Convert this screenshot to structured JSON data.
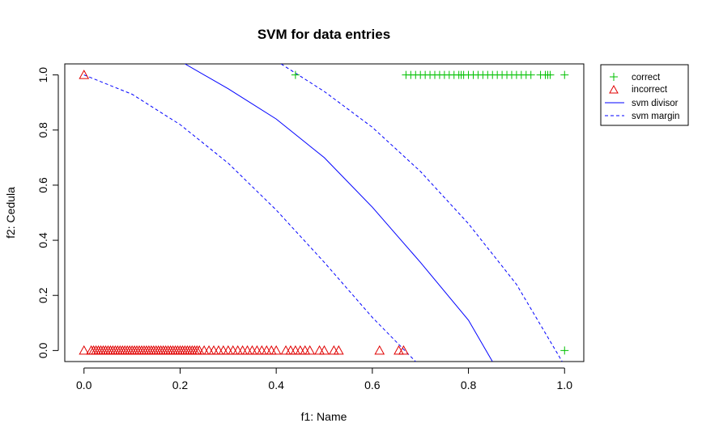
{
  "chart_data": {
    "type": "scatter",
    "title": "SVM for data entries",
    "xlabel": "f1: Name",
    "ylabel": "f2: Cedula",
    "xlim": [
      -0.04,
      1.04
    ],
    "ylim": [
      -0.04,
      1.04
    ],
    "xticks": [
      0.0,
      0.2,
      0.4,
      0.6,
      0.8,
      1.0
    ],
    "yticks": [
      0.0,
      0.2,
      0.4,
      0.6,
      0.8,
      1.0
    ],
    "xtick_labels": [
      "0.0",
      "0.2",
      "0.4",
      "0.6",
      "0.8",
      "1.0"
    ],
    "ytick_labels": [
      "0.0",
      "0.2",
      "0.4",
      "0.6",
      "0.8",
      "1.0"
    ],
    "grid": false,
    "legend_position": "outside-top-right",
    "series": [
      {
        "name": "correct",
        "marker": "plus",
        "color": "#00c000",
        "points": [
          [
            0.44,
            1.0
          ],
          [
            0.67,
            1.0
          ],
          [
            0.68,
            1.0
          ],
          [
            0.69,
            1.0
          ],
          [
            0.7,
            1.0
          ],
          [
            0.71,
            1.0
          ],
          [
            0.72,
            1.0
          ],
          [
            0.73,
            1.0
          ],
          [
            0.74,
            1.0
          ],
          [
            0.75,
            1.0
          ],
          [
            0.76,
            1.0
          ],
          [
            0.77,
            1.0
          ],
          [
            0.78,
            1.0
          ],
          [
            0.785,
            1.0
          ],
          [
            0.79,
            1.0
          ],
          [
            0.8,
            1.0
          ],
          [
            0.81,
            1.0
          ],
          [
            0.82,
            1.0
          ],
          [
            0.83,
            1.0
          ],
          [
            0.84,
            1.0
          ],
          [
            0.85,
            1.0
          ],
          [
            0.86,
            1.0
          ],
          [
            0.87,
            1.0
          ],
          [
            0.88,
            1.0
          ],
          [
            0.89,
            1.0
          ],
          [
            0.9,
            1.0
          ],
          [
            0.91,
            1.0
          ],
          [
            0.92,
            1.0
          ],
          [
            0.93,
            1.0
          ],
          [
            0.95,
            1.0
          ],
          [
            0.96,
            1.0
          ],
          [
            0.965,
            1.0
          ],
          [
            0.97,
            1.0
          ],
          [
            1.0,
            1.0
          ],
          [
            1.0,
            0.0
          ]
        ]
      },
      {
        "name": "incorrect",
        "marker": "triangle",
        "color": "#e00000",
        "points": [
          [
            0.0,
            1.0
          ],
          [
            0.0,
            0.0
          ],
          [
            0.015,
            0.0
          ],
          [
            0.02,
            0.0
          ],
          [
            0.025,
            0.0
          ],
          [
            0.03,
            0.0
          ],
          [
            0.035,
            0.0
          ],
          [
            0.04,
            0.0
          ],
          [
            0.045,
            0.0
          ],
          [
            0.05,
            0.0
          ],
          [
            0.055,
            0.0
          ],
          [
            0.06,
            0.0
          ],
          [
            0.065,
            0.0
          ],
          [
            0.07,
            0.0
          ],
          [
            0.075,
            0.0
          ],
          [
            0.08,
            0.0
          ],
          [
            0.085,
            0.0
          ],
          [
            0.09,
            0.0
          ],
          [
            0.095,
            0.0
          ],
          [
            0.1,
            0.0
          ],
          [
            0.105,
            0.0
          ],
          [
            0.11,
            0.0
          ],
          [
            0.115,
            0.0
          ],
          [
            0.12,
            0.0
          ],
          [
            0.125,
            0.0
          ],
          [
            0.13,
            0.0
          ],
          [
            0.135,
            0.0
          ],
          [
            0.14,
            0.0
          ],
          [
            0.145,
            0.0
          ],
          [
            0.15,
            0.0
          ],
          [
            0.155,
            0.0
          ],
          [
            0.16,
            0.0
          ],
          [
            0.165,
            0.0
          ],
          [
            0.17,
            0.0
          ],
          [
            0.175,
            0.0
          ],
          [
            0.18,
            0.0
          ],
          [
            0.185,
            0.0
          ],
          [
            0.19,
            0.0
          ],
          [
            0.195,
            0.0
          ],
          [
            0.2,
            0.0
          ],
          [
            0.205,
            0.0
          ],
          [
            0.21,
            0.0
          ],
          [
            0.215,
            0.0
          ],
          [
            0.22,
            0.0
          ],
          [
            0.225,
            0.0
          ],
          [
            0.23,
            0.0
          ],
          [
            0.235,
            0.0
          ],
          [
            0.24,
            0.0
          ],
          [
            0.25,
            0.0
          ],
          [
            0.26,
            0.0
          ],
          [
            0.27,
            0.0
          ],
          [
            0.28,
            0.0
          ],
          [
            0.29,
            0.0
          ],
          [
            0.3,
            0.0
          ],
          [
            0.31,
            0.0
          ],
          [
            0.32,
            0.0
          ],
          [
            0.33,
            0.0
          ],
          [
            0.34,
            0.0
          ],
          [
            0.35,
            0.0
          ],
          [
            0.36,
            0.0
          ],
          [
            0.37,
            0.0
          ],
          [
            0.38,
            0.0
          ],
          [
            0.39,
            0.0
          ],
          [
            0.4,
            0.0
          ],
          [
            0.42,
            0.0
          ],
          [
            0.43,
            0.0
          ],
          [
            0.44,
            0.0
          ],
          [
            0.45,
            0.0
          ],
          [
            0.46,
            0.0
          ],
          [
            0.47,
            0.0
          ],
          [
            0.49,
            0.0
          ],
          [
            0.5,
            0.0
          ],
          [
            0.52,
            0.0
          ],
          [
            0.53,
            0.0
          ],
          [
            0.615,
            0.0
          ],
          [
            0.655,
            0.0
          ],
          [
            0.665,
            0.0
          ]
        ]
      },
      {
        "name": "svm divisor",
        "line": "solid",
        "color": "#0000ff",
        "points": [
          [
            0.21,
            1.04
          ],
          [
            0.3,
            0.95
          ],
          [
            0.4,
            0.84
          ],
          [
            0.5,
            0.7
          ],
          [
            0.6,
            0.52
          ],
          [
            0.7,
            0.32
          ],
          [
            0.8,
            0.11
          ],
          [
            0.85,
            -0.04
          ]
        ]
      },
      {
        "name": "svm margin",
        "line": "dashed",
        "color": "#0000ff",
        "segments": [
          [
            [
              0.0,
              1.0
            ],
            [
              0.1,
              0.93
            ],
            [
              0.2,
              0.82
            ],
            [
              0.3,
              0.68
            ],
            [
              0.4,
              0.51
            ],
            [
              0.5,
              0.32
            ],
            [
              0.6,
              0.12
            ],
            [
              0.69,
              -0.04
            ]
          ],
          [
            [
              0.41,
              1.04
            ],
            [
              0.5,
              0.94
            ],
            [
              0.6,
              0.81
            ],
            [
              0.7,
              0.65
            ],
            [
              0.8,
              0.46
            ],
            [
              0.9,
              0.24
            ],
            [
              0.995,
              -0.04
            ]
          ]
        ]
      }
    ]
  }
}
